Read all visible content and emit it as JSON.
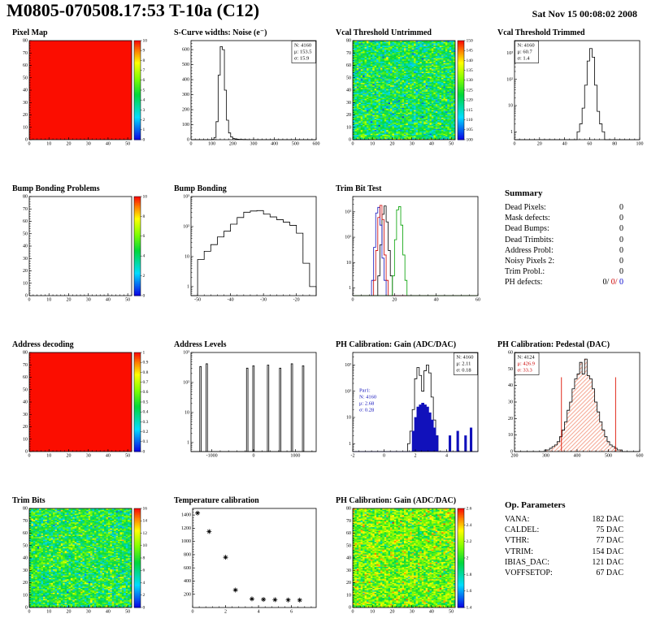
{
  "header": {
    "title": "M0805-070508.17:53 T-10a (C12)",
    "date": "Sat Nov 15 00:08:02 2008"
  },
  "chart_data": [
    {
      "type": "heatmap",
      "title": "Pixel Map",
      "mode": "solid",
      "solid_color": "#fb0d00",
      "xlim": [
        0,
        52
      ],
      "ylim": [
        0,
        80
      ],
      "xticks": [
        0,
        10,
        20,
        30,
        40,
        50
      ],
      "yticks": [
        0,
        10,
        20,
        30,
        40,
        50,
        60,
        70,
        80
      ],
      "zlim": [
        0,
        10
      ],
      "zticks": [
        0,
        1,
        2,
        3,
        4,
        5,
        6,
        7,
        8,
        9,
        10
      ],
      "seed": 1
    },
    {
      "type": "histogram",
      "title": "S-Curve widths: Noise (e⁻)",
      "xlim": [
        0,
        600
      ],
      "ylim": [
        0,
        660
      ],
      "log_y": false,
      "xticks": [
        0,
        100,
        200,
        300,
        400,
        500,
        600
      ],
      "yticks": [
        0,
        100,
        200,
        300,
        400,
        500,
        600
      ],
      "series": [
        {
          "name": "noise",
          "color": "#000000",
          "x0": 100,
          "binw": 10,
          "heights": [
            2,
            15,
            120,
            430,
            620,
            600,
            330,
            130,
            45,
            18,
            8,
            5,
            3,
            2,
            2,
            1,
            1
          ]
        }
      ],
      "stats": [
        {
          "lines": [
            "N: 4160",
            "μ: 153.5",
            "σ: 15.9"
          ],
          "align": "tr",
          "boxed": true
        }
      ]
    },
    {
      "type": "heatmap",
      "title": "Vcal Threshold Untrimmed",
      "mode": "noise",
      "mean": 122,
      "sd": 7,
      "seed": 7,
      "xlim": [
        0,
        52
      ],
      "ylim": [
        0,
        80
      ],
      "xticks": [
        0,
        10,
        20,
        30,
        40,
        50
      ],
      "yticks": [
        0,
        10,
        20,
        30,
        40,
        50,
        60,
        70,
        80
      ],
      "zlim": [
        100,
        150
      ],
      "zticks": [
        100,
        105,
        110,
        115,
        120,
        125,
        130,
        135,
        140,
        145,
        150
      ]
    },
    {
      "type": "histogram",
      "title": "Vcal Threshold Trimmed",
      "xlim": [
        0,
        100
      ],
      "ylim": [
        0.5,
        3000
      ],
      "log_y": true,
      "xticks": [
        0,
        20,
        40,
        60,
        80,
        100
      ],
      "series": [
        {
          "name": "threshold",
          "color": "#000000",
          "x0": 50,
          "binw": 2,
          "heights": [
            1,
            2,
            8,
            60,
            500,
            1500,
            700,
            60,
            6,
            2,
            1
          ]
        }
      ],
      "stats": [
        {
          "lines": [
            "N: 4160",
            "μ: 60.7",
            "σ: 1.4"
          ],
          "align": "tl",
          "boxed": true
        }
      ]
    },
    {
      "type": "heatmap",
      "title": "Bump Bonding Problems",
      "mode": "empty",
      "xlim": [
        0,
        52
      ],
      "ylim": [
        0,
        80
      ],
      "xticks": [
        0,
        10,
        20,
        30,
        40,
        50
      ],
      "yticks": [
        0,
        10,
        20,
        30,
        40,
        50,
        60,
        70,
        80
      ],
      "zlim": [
        0,
        10
      ],
      "zticks": [
        0,
        2,
        4,
        6,
        8,
        10
      ],
      "seed": 2
    },
    {
      "type": "histogram",
      "title": "Bump Bonding",
      "xlim": [
        -52,
        -14
      ],
      "ylim": [
        0.5,
        1000
      ],
      "log_y": true,
      "xticks": [
        -50,
        -40,
        -30,
        -20
      ],
      "series": [
        {
          "name": "bump",
          "color": "#000000",
          "x0": -50,
          "binw": 2,
          "heights": [
            8,
            15,
            25,
            45,
            70,
            120,
            200,
            300,
            330,
            340,
            260,
            210,
            170,
            140,
            110,
            60,
            6,
            1
          ]
        }
      ]
    },
    {
      "type": "histogram",
      "title": "Trim Bit Test",
      "xlim": [
        0,
        60
      ],
      "ylim": [
        0.5,
        4000
      ],
      "log_y": true,
      "xticks": [
        0,
        20,
        40,
        60
      ],
      "series": [
        {
          "name": "trim-black",
          "color": "#000000",
          "x0": 12,
          "binw": 1,
          "heights": [
            3,
            50,
            800,
            1700,
            400,
            30,
            3
          ]
        },
        {
          "name": "trim-blue",
          "color": "#1111bb",
          "x0": 9,
          "binw": 1,
          "heights": [
            2,
            40,
            900,
            1500,
            300,
            15,
            2
          ]
        },
        {
          "name": "trim-red",
          "color": "#cc0000",
          "x0": 10,
          "binw": 1,
          "heights": [
            2,
            30,
            600,
            1800,
            500,
            20,
            2
          ]
        },
        {
          "name": "trim-green",
          "color": "#00a000",
          "x0": 19,
          "binw": 1,
          "heights": [
            3,
            80,
            1200,
            1600,
            300,
            20,
            2
          ]
        }
      ]
    },
    {
      "type": "table",
      "title": "Summary",
      "rows": [
        {
          "label": "Dead Pixels:",
          "parts": [
            [
              "0",
              "#000000"
            ]
          ]
        },
        {
          "label": "Mask defects:",
          "parts": [
            [
              "0",
              "#000000"
            ]
          ]
        },
        {
          "label": "Dead Bumps:",
          "parts": [
            [
              "0",
              "#000000"
            ]
          ]
        },
        {
          "label": "Dead Trimbits:",
          "parts": [
            [
              "0",
              "#000000"
            ]
          ]
        },
        {
          "label": "Address Probl:",
          "parts": [
            [
              "0",
              "#000000"
            ]
          ]
        },
        {
          "label": "Noisy Pixels 2:",
          "parts": [
            [
              "0",
              "#000000"
            ]
          ]
        },
        {
          "label": "Trim Probl.:",
          "parts": [
            [
              "0",
              "#000000"
            ]
          ]
        },
        {
          "label": "PH defects:",
          "parts": [
            [
              "0/",
              "#000000"
            ],
            [
              "0/",
              "#cc0000"
            ],
            [
              "0",
              "#0000cc"
            ]
          ]
        }
      ]
    },
    {
      "type": "heatmap",
      "title": "Address decoding",
      "mode": "solid",
      "solid_color": "#fb0d00",
      "xlim": [
        0,
        52
      ],
      "ylim": [
        0,
        80
      ],
      "xticks": [
        0,
        10,
        20,
        30,
        40,
        50
      ],
      "yticks": [
        0,
        10,
        20,
        30,
        40,
        50,
        60,
        70,
        80
      ],
      "zlim": [
        0,
        1
      ],
      "zticks": [
        0,
        0.1,
        0.2,
        0.3,
        0.4,
        0.5,
        0.6,
        0.7,
        0.8,
        0.9,
        1
      ],
      "seed": 3
    },
    {
      "type": "histogram",
      "title": "Address Levels",
      "xlim": [
        -1500,
        1500
      ],
      "ylim": [
        0.5,
        1000
      ],
      "log_y": true,
      "xticks": [
        -1000,
        0,
        1000
      ],
      "series": [
        {
          "name": "levels",
          "color": "#000000",
          "bars": [
            [
              -1290,
              35,
              340
            ],
            [
              -1140,
              35,
              420
            ],
            [
              -170,
              35,
              300
            ],
            [
              -20,
              35,
              360
            ],
            [
              330,
              35,
              380
            ],
            [
              620,
              35,
              300
            ],
            [
              900,
              35,
              420
            ],
            [
              1170,
              35,
              360
            ]
          ]
        }
      ]
    },
    {
      "type": "histogram",
      "title": "PH Calibration: Gain (ADC/DAC)",
      "xlim": [
        -2,
        6
      ],
      "ylim": [
        0.5,
        3000
      ],
      "log_y": true,
      "xticks": [
        -2,
        0,
        2,
        4
      ],
      "series": [
        {
          "name": "Par0",
          "color": "#000000",
          "x0": 1.5,
          "binw": 0.15,
          "heights": [
            1,
            3,
            20,
            300,
            800,
            400,
            100,
            600,
            1000,
            500,
            60,
            8,
            2
          ]
        },
        {
          "name": "Par1",
          "color": "#1111bb",
          "fill": "#1111bb",
          "x0": 1.8,
          "binw": 0.15,
          "heights": [
            3,
            10,
            25,
            30,
            35,
            30,
            25,
            15,
            8,
            4,
            2
          ],
          "bars": [
            [
              4.15,
              0.12,
              2
            ],
            [
              4.65,
              0.12,
              3
            ],
            [
              5.15,
              0.12,
              2
            ],
            [
              5.5,
              0.12,
              4
            ]
          ]
        }
      ],
      "stats": [
        {
          "lines": [
            "N: 4160",
            "μ: 2.11",
            "σ: 0.18"
          ],
          "align": "tr",
          "boxed": true
        },
        {
          "lines": [
            "Par1:",
            "N: 4160",
            "μ: 2.68",
            "σ: 0.28"
          ],
          "align": "ml",
          "color": "#1111bb",
          "boxed": false
        }
      ]
    },
    {
      "type": "histogram",
      "title": "PH Calibration: Pedestal (DAC)",
      "xlim": [
        200,
        600
      ],
      "ylim": [
        0,
        60
      ],
      "log_y": false,
      "xticks": [
        200,
        300,
        400,
        500,
        600
      ],
      "yticks": [
        0,
        10,
        20,
        30,
        40,
        50,
        60
      ],
      "series": [
        {
          "name": "pedestal",
          "color": "#000000",
          "fill": "hatch",
          "x0": 296,
          "binw": 8,
          "heights": [
            1,
            1,
            2,
            3,
            4,
            6,
            9,
            13,
            18,
            25,
            30,
            38,
            44,
            47,
            54,
            47,
            56,
            46,
            44,
            38,
            30,
            24,
            18,
            13,
            9,
            6,
            4,
            3,
            2,
            1,
            1
          ]
        }
      ],
      "vlines": [
        {
          "x": 350,
          "h": 45,
          "color": "#dd1100"
        },
        {
          "x": 523,
          "h": 45,
          "color": "#dd1100"
        }
      ],
      "stats": [
        {
          "lines": [
            "N: 4124",
            "μ: 426.9",
            "σ: 33.3"
          ],
          "colors": [
            "#000000",
            "#cc0000",
            "#cc0000"
          ],
          "align": "tl",
          "boxed": true
        }
      ]
    },
    {
      "type": "heatmap",
      "title": "Trim Bits",
      "mode": "noise",
      "mean": 7.5,
      "sd": 2.2,
      "seed": 21,
      "xlim": [
        0,
        52
      ],
      "ylim": [
        0,
        80
      ],
      "xticks": [
        0,
        10,
        20,
        30,
        40,
        50
      ],
      "yticks": [
        0,
        10,
        20,
        30,
        40,
        50,
        60,
        70,
        80
      ],
      "zlim": [
        0,
        16
      ],
      "zticks": [
        0,
        2,
        4,
        6,
        8,
        10,
        12,
        14,
        16
      ]
    },
    {
      "type": "scatter",
      "title": "Temperature calibration",
      "xlim": [
        0,
        7.5
      ],
      "ylim": [
        0,
        1500
      ],
      "xticks": [
        0,
        2,
        4,
        6
      ],
      "yticks": [
        200,
        400,
        600,
        800,
        1000,
        1200,
        1400
      ],
      "marker": "star",
      "color": "#000000",
      "points": [
        [
          0.3,
          1430
        ],
        [
          1,
          1150
        ],
        [
          2,
          760
        ],
        [
          2.6,
          265
        ],
        [
          3.6,
          130
        ],
        [
          4.3,
          122
        ],
        [
          5,
          118
        ],
        [
          5.8,
          114
        ],
        [
          6.5,
          112
        ]
      ]
    },
    {
      "type": "heatmap",
      "title": "PH Calibration: Gain (ADC/DAC)",
      "mode": "noise",
      "mean": 2.12,
      "sd": 0.16,
      "seed": 99,
      "xlim": [
        0,
        52
      ],
      "ylim": [
        0,
        80
      ],
      "xticks": [
        0,
        10,
        20,
        30,
        40,
        50
      ],
      "yticks": [
        0,
        10,
        20,
        30,
        40,
        50,
        60,
        70,
        80
      ],
      "zlim": [
        1.4,
        2.6
      ],
      "zticks": [
        1.4,
        1.6,
        1.8,
        2,
        2.2,
        2.4,
        2.6
      ]
    },
    {
      "type": "table",
      "title": "Op. Parameters",
      "rows": [
        {
          "label": "VANA:",
          "parts": [
            [
              "182 DAC",
              "#000000"
            ]
          ]
        },
        {
          "label": "CALDEL:",
          "parts": [
            [
              "75 DAC",
              "#000000"
            ]
          ]
        },
        {
          "label": "VTHR:",
          "parts": [
            [
              "77 DAC",
              "#000000"
            ]
          ]
        },
        {
          "label": "VTRIM:",
          "parts": [
            [
              "154 DAC",
              "#000000"
            ]
          ]
        },
        {
          "label": "IBIAS_DAC:",
          "parts": [
            [
              "121 DAC",
              "#000000"
            ]
          ]
        },
        {
          "label": "VOFFSETOP:",
          "parts": [
            [
              "67 DAC",
              "#000000"
            ]
          ]
        }
      ]
    }
  ]
}
